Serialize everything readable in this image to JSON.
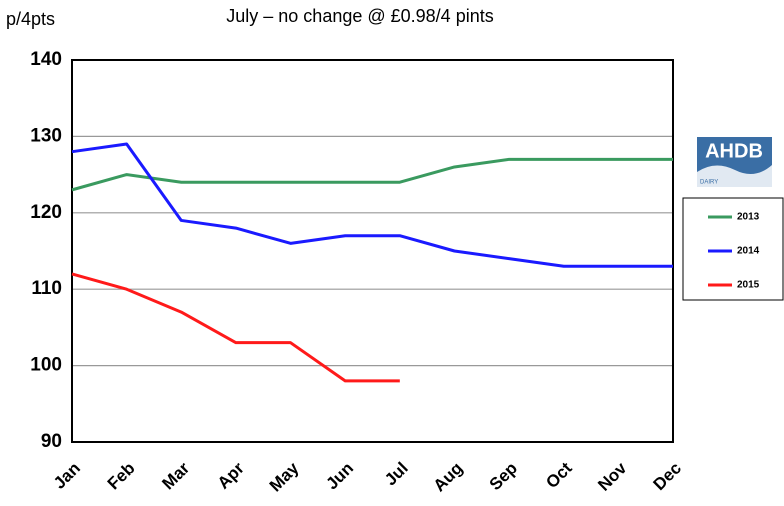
{
  "chart_data": {
    "type": "line",
    "title": "July – no change @ £0.98/4 pints",
    "y_label": "p/4pts",
    "logo": {
      "text": "AHDB",
      "subtext": "DAIRY"
    },
    "categories": [
      "Jan",
      "Feb",
      "Mar",
      "Apr",
      "May",
      "Jun",
      "Jul",
      "Aug",
      "Sep",
      "Oct",
      "Nov",
      "Dec"
    ],
    "series": [
      {
        "name": "2013",
        "color": "#3a9a5f",
        "values": [
          123,
          125,
          124,
          124,
          124,
          124,
          124,
          126,
          127,
          127,
          127,
          127
        ]
      },
      {
        "name": "2014",
        "color": "#1a1aff",
        "values": [
          128,
          129,
          119,
          118,
          116,
          117,
          117,
          115,
          114,
          113,
          113,
          113
        ]
      },
      {
        "name": "2015",
        "color": "#ff1a1a",
        "values": [
          112,
          110,
          107,
          103,
          103,
          98,
          98,
          null,
          null,
          null,
          null,
          null
        ]
      }
    ],
    "ylim": [
      90,
      140
    ],
    "yticks": [
      90,
      100,
      110,
      120,
      130,
      140
    ],
    "grid": true,
    "legend": "right"
  }
}
